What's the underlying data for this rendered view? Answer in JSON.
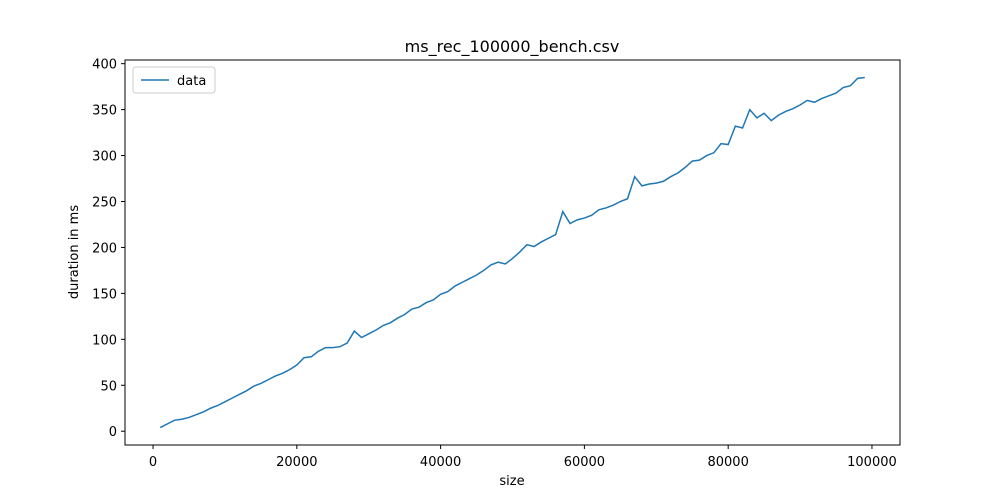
{
  "chart_data": {
    "type": "line",
    "title": "ms_rec_100000_bench.csv",
    "x_label": "size",
    "y_label": "duration in ms",
    "x": [
      1000,
      2000,
      3000,
      4000,
      5000,
      6000,
      7000,
      8000,
      9000,
      10000,
      11000,
      12000,
      13000,
      14000,
      15000,
      16000,
      17000,
      18000,
      19000,
      20000,
      21000,
      22000,
      23000,
      24000,
      25000,
      26000,
      27000,
      28000,
      29000,
      30000,
      31000,
      32000,
      33000,
      34000,
      35000,
      36000,
      37000,
      38000,
      39000,
      40000,
      41000,
      42000,
      43000,
      44000,
      45000,
      46000,
      47000,
      48000,
      49000,
      50000,
      51000,
      52000,
      53000,
      54000,
      55000,
      56000,
      57000,
      58000,
      59000,
      60000,
      61000,
      62000,
      63000,
      64000,
      65000,
      66000,
      67000,
      68000,
      69000,
      70000,
      71000,
      72000,
      73000,
      74000,
      75000,
      76000,
      77000,
      78000,
      79000,
      80000,
      81000,
      82000,
      83000,
      84000,
      85000,
      86000,
      87000,
      88000,
      89000,
      90000,
      91000,
      92000,
      93000,
      94000,
      95000,
      96000,
      97000,
      98000,
      99000
    ],
    "series": [
      {
        "name": "data",
        "color": "#1f77b4",
        "values": [
          4,
          8,
          12,
          13,
          15,
          18,
          21,
          25,
          28,
          32,
          36,
          40,
          44,
          49,
          52,
          56,
          60,
          63,
          67,
          72,
          80,
          81,
          87,
          91,
          91,
          92,
          96,
          109,
          102,
          106,
          110,
          115,
          118,
          123,
          127,
          133,
          135,
          140,
          143,
          149,
          152,
          158,
          162,
          166,
          170,
          175,
          181,
          184,
          182,
          188,
          195,
          203,
          201,
          206,
          210,
          214,
          239,
          226,
          230,
          232,
          235,
          241,
          243,
          246,
          250,
          253,
          277,
          267,
          269,
          270,
          272,
          277,
          281,
          287,
          294,
          295,
          300,
          303,
          313,
          312,
          332,
          330,
          350,
          341,
          346,
          338,
          344,
          348,
          351,
          355,
          360,
          358,
          362,
          365,
          368,
          374,
          376,
          384,
          385
        ]
      }
    ],
    "xlim": [
      -3900,
      103900
    ],
    "ylim": [
      -15,
      404
    ],
    "xticks": [
      0,
      20000,
      40000,
      60000,
      80000,
      100000
    ],
    "yticks": [
      0,
      50,
      100,
      150,
      200,
      250,
      300,
      350,
      400
    ],
    "legend": "upper left",
    "grid": false
  }
}
